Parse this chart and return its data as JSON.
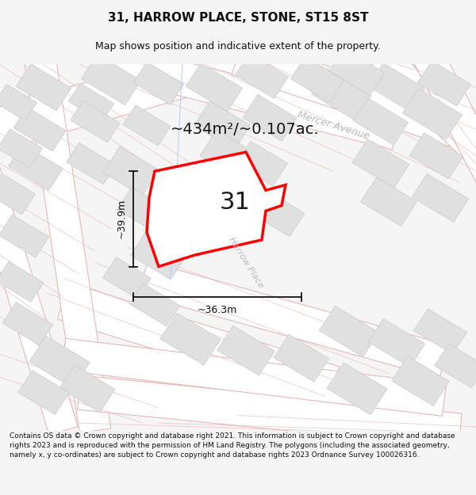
{
  "title": "31, HARROW PLACE, STONE, ST15 8ST",
  "subtitle": "Map shows position and indicative extent of the property.",
  "area_label": "~434m²/~0.107ac.",
  "number_label": "31",
  "width_label": "~36.3m",
  "height_label": "~39.9m",
  "street_label_1": "Mercer Avenue",
  "street_label_2": "Harrow Place",
  "footer_text": "Contains OS data © Crown copyright and database right 2021. This information is subject to Crown copyright and database rights 2023 and is reproduced with the permission of HM Land Registry. The polygons (including the associated geometry, namely x, y co-ordinates) are subject to Crown copyright and database rights 2023 Ordnance Survey 100026316.",
  "bg_color": "#f5f5f5",
  "map_bg": "#ffffff",
  "plot_color": "#ff0000",
  "road_outline_color": "#e8b8b8",
  "road_fill_color": "#f5e8e8",
  "building_color": "#e0e0e0",
  "building_edge": "#cccccc",
  "plot_fill": "#ffffff",
  "dim_line_color": "#111111",
  "text_color": "#111111",
  "street_text_color": "#bbbbbb",
  "blue_line_color": "#aaccff",
  "fig_width": 6.0,
  "fig_height": 6.25,
  "title_fontsize": 11,
  "subtitle_fontsize": 9,
  "area_fontsize": 14,
  "number_fontsize": 22,
  "dim_fontsize": 9,
  "street_fontsize": 9,
  "footer_fontsize": 6.5
}
